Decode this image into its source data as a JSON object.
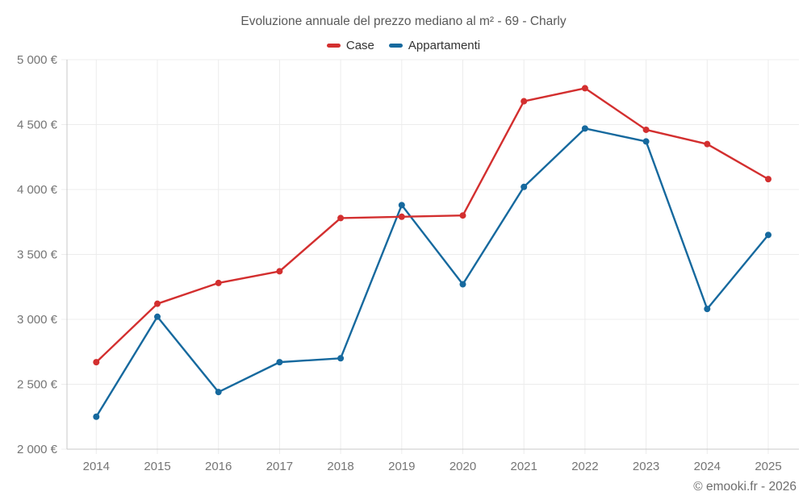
{
  "header": {
    "title": "Evoluzione annuale del prezzo mediano al m² - 69 - Charly"
  },
  "legend": {
    "items": [
      {
        "label": "Case",
        "color": "#d32f2f"
      },
      {
        "label": "Appartamenti",
        "color": "#16699e"
      }
    ]
  },
  "chart_data": {
    "type": "line",
    "title": "Evoluzione annuale del prezzo mediano al m² - 69 - Charly",
    "x": [
      2014,
      2015,
      2016,
      2017,
      2018,
      2019,
      2020,
      2021,
      2022,
      2023,
      2024,
      2025
    ],
    "x_tick_labels": [
      "2014",
      "2015",
      "2016",
      "2017",
      "2018",
      "2019",
      "2020",
      "2021",
      "2022",
      "2023",
      "2024",
      "2025"
    ],
    "series": [
      {
        "name": "Case",
        "color": "#d32f2f",
        "values": [
          2670,
          3120,
          3280,
          3370,
          3780,
          3790,
          3800,
          4680,
          4780,
          4460,
          4350,
          4080
        ]
      },
      {
        "name": "Appartamenti",
        "color": "#16699e",
        "values": [
          2250,
          3020,
          2440,
          2670,
          2700,
          3880,
          3270,
          4020,
          4470,
          4370,
          3080,
          3650
        ]
      }
    ],
    "ylim": [
      2000,
      5000
    ],
    "y_ticks": [
      2000,
      2500,
      3000,
      3500,
      4000,
      4500,
      5000
    ],
    "y_tick_labels": [
      "2 000 €",
      "2 500 €",
      "3 000 €",
      "3 500 €",
      "4 000 €",
      "4 500 €",
      "5 000 €"
    ],
    "xlabel": "",
    "ylabel": "",
    "grid": true,
    "legend_position": "top",
    "currency": "EUR"
  },
  "footer": {
    "credit": "© emooki.fr - 2026"
  },
  "colors": {
    "case_series": "#d32f2f",
    "appartamenti_series": "#16699e",
    "gridline": "#ececec",
    "axis_spine": "#c9c9c9",
    "tick_label": "#757575",
    "title_text": "#595959",
    "footer_text": "#6e6e6e",
    "background": "#ffffff"
  }
}
